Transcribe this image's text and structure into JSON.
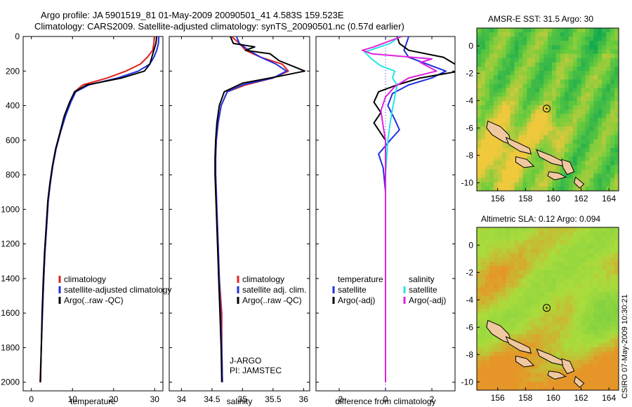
{
  "header": {
    "line1": "Argo profile: JA 5901519_81 01-May-2009 20090501_41 4.583S 159.523E",
    "line2": "Climatology: CARS2009. Satellite-adjusted climatology: synTS_20090501.nc (0.57d earlier)"
  },
  "stamp": "CSIRO 07-May-2009 10:30:21",
  "colors": {
    "climatology": "#e0201c",
    "satellite": "#2030e0",
    "argo": "#000000",
    "satellite_salinity": "#22e6e6",
    "argo_salinity_diff": "#e020e0",
    "land": "#f0c8a0"
  },
  "chart_data": [
    {
      "type": "line",
      "name": "temperature-panel",
      "xlabel": "temperature",
      "xlim": [
        -2,
        32
      ],
      "xticks": [
        0,
        10,
        20,
        30
      ],
      "ylim": [
        0,
        2050
      ],
      "yticks": [
        0,
        200,
        400,
        600,
        800,
        1000,
        1200,
        1400,
        1600,
        1800,
        2000
      ],
      "y_reversed": true,
      "legend": [
        "climatology",
        "satellite-adjusted climatology",
        "Argo(..raw -QC)"
      ],
      "legend_position": "lower-right",
      "series": [
        {
          "name": "climatology",
          "color": "#e0201c",
          "points": [
            [
              29.9,
              0
            ],
            [
              29.8,
              40
            ],
            [
              29.5,
              80
            ],
            [
              28.2,
              120
            ],
            [
              26.5,
              160
            ],
            [
              23.0,
              200
            ],
            [
              18.5,
              240
            ],
            [
              12.5,
              280
            ],
            [
              10.5,
              320
            ],
            [
              9.5,
              380
            ],
            [
              8.2,
              460
            ],
            [
              7.0,
              560
            ],
            [
              6.0,
              650
            ],
            [
              5.2,
              750
            ],
            [
              4.6,
              850
            ],
            [
              4.1,
              950
            ],
            [
              3.7,
              1100
            ],
            [
              3.3,
              1250
            ],
            [
              3.0,
              1400
            ],
            [
              2.7,
              1600
            ],
            [
              2.4,
              1800
            ],
            [
              2.1,
              2000
            ]
          ]
        },
        {
          "name": "satellite-adjusted climatology",
          "color": "#2030e0",
          "points": [
            [
              31.0,
              0
            ],
            [
              30.9,
              40
            ],
            [
              30.5,
              80
            ],
            [
              29.8,
              120
            ],
            [
              28.8,
              160
            ],
            [
              26.0,
              200
            ],
            [
              21.0,
              240
            ],
            [
              14.0,
              280
            ],
            [
              10.8,
              320
            ],
            [
              9.6,
              380
            ],
            [
              8.3,
              460
            ],
            [
              7.0,
              560
            ],
            [
              6.0,
              650
            ],
            [
              5.2,
              750
            ],
            [
              4.6,
              850
            ],
            [
              4.1,
              950
            ],
            [
              3.7,
              1100
            ],
            [
              3.3,
              1250
            ],
            [
              3.0,
              1400
            ],
            [
              2.7,
              1600
            ],
            [
              2.4,
              1800
            ],
            [
              2.2,
              2000
            ]
          ]
        },
        {
          "name": "Argo(..raw -QC)",
          "color": "#000000",
          "points": [
            [
              30.5,
              0
            ],
            [
              30.3,
              40
            ],
            [
              29.8,
              80
            ],
            [
              29.3,
              120
            ],
            [
              28.8,
              160
            ],
            [
              27.5,
              200
            ],
            [
              22.0,
              240
            ],
            [
              13.5,
              280
            ],
            [
              10.5,
              320
            ],
            [
              9.3,
              380
            ],
            [
              8.0,
              460
            ],
            [
              6.9,
              560
            ],
            [
              5.9,
              650
            ],
            [
              5.1,
              750
            ],
            [
              4.5,
              850
            ],
            [
              4.0,
              950
            ],
            [
              3.6,
              1100
            ],
            [
              3.2,
              1250
            ],
            [
              2.9,
              1400
            ],
            [
              2.6,
              1600
            ],
            [
              2.4,
              1800
            ],
            [
              2.2,
              2000
            ]
          ]
        }
      ]
    },
    {
      "type": "line",
      "name": "salinity-panel",
      "xlabel": "salinity",
      "xlim": [
        33.8,
        36.1
      ],
      "xticks": [
        34,
        34.5,
        35,
        35.5,
        36
      ],
      "ylim": [
        0,
        2050
      ],
      "y_reversed": true,
      "legend": [
        "climatology",
        "satellite adj. clim.",
        "Argo(..raw -QC)"
      ],
      "legend_position": "lower-right",
      "annotation": [
        "J-ARGO",
        "PI: JAMSTEC"
      ],
      "series": [
        {
          "name": "climatology",
          "color": "#e0201c",
          "points": [
            [
              34.82,
              0
            ],
            [
              34.95,
              40
            ],
            [
              35.05,
              80
            ],
            [
              35.3,
              120
            ],
            [
              35.65,
              160
            ],
            [
              35.75,
              200
            ],
            [
              35.5,
              240
            ],
            [
              35.05,
              280
            ],
            [
              34.75,
              320
            ],
            [
              34.65,
              400
            ],
            [
              34.6,
              500
            ],
            [
              34.57,
              600
            ],
            [
              34.56,
              700
            ],
            [
              34.56,
              800
            ],
            [
              34.57,
              900
            ],
            [
              34.58,
              1000
            ],
            [
              34.6,
              1200
            ],
            [
              34.62,
              1400
            ],
            [
              34.65,
              1550
            ],
            [
              34.66,
              1600
            ],
            [
              34.66,
              1800
            ],
            [
              34.67,
              2000
            ]
          ]
        },
        {
          "name": "satellite adj. clim.",
          "color": "#2030e0",
          "points": [
            [
              34.9,
              0
            ],
            [
              34.95,
              40
            ],
            [
              35.1,
              80
            ],
            [
              35.3,
              120
            ],
            [
              35.55,
              160
            ],
            [
              35.72,
              200
            ],
            [
              35.5,
              240
            ],
            [
              35.0,
              280
            ],
            [
              34.75,
              320
            ],
            [
              34.65,
              400
            ],
            [
              34.6,
              500
            ],
            [
              34.57,
              600
            ],
            [
              34.56,
              700
            ],
            [
              34.56,
              800
            ],
            [
              34.57,
              900
            ],
            [
              34.58,
              1000
            ],
            [
              34.6,
              1200
            ],
            [
              34.62,
              1400
            ],
            [
              34.64,
              1600
            ],
            [
              34.66,
              1800
            ],
            [
              34.67,
              2000
            ]
          ]
        },
        {
          "name": "Argo(..raw -QC)",
          "color": "#000000",
          "points": [
            [
              34.8,
              0
            ],
            [
              34.85,
              40
            ],
            [
              35.2,
              60
            ],
            [
              35.05,
              80
            ],
            [
              35.45,
              100
            ],
            [
              35.6,
              140
            ],
            [
              35.95,
              190
            ],
            [
              36.02,
              200
            ],
            [
              35.6,
              230
            ],
            [
              35.0,
              270
            ],
            [
              34.7,
              320
            ],
            [
              34.62,
              400
            ],
            [
              34.58,
              500
            ],
            [
              34.56,
              600
            ],
            [
              34.55,
              700
            ],
            [
              34.55,
              800
            ],
            [
              34.56,
              900
            ],
            [
              34.57,
              1000
            ],
            [
              34.59,
              1200
            ],
            [
              34.61,
              1400
            ],
            [
              34.63,
              1600
            ],
            [
              34.65,
              1800
            ],
            [
              34.66,
              2000
            ]
          ]
        }
      ]
    },
    {
      "type": "line",
      "name": "difference-panel",
      "xlabel": "difference from climatology",
      "xlim": [
        -3,
        3
      ],
      "xticks": [
        -2,
        0,
        2
      ],
      "ylim": [
        0,
        2050
      ],
      "y_reversed": true,
      "legend": [
        "temperature",
        "satellite",
        "Argo(-adj)",
        "salinity",
        "satellite",
        "Argo(-adj)"
      ],
      "legend_position": "lower-right",
      "series": [
        {
          "name": "temperature satellite",
          "color": "#2030e0",
          "points": [
            [
              1.0,
              0
            ],
            [
              0.9,
              40
            ],
            [
              0.8,
              80
            ],
            [
              1.0,
              120
            ],
            [
              1.8,
              160
            ],
            [
              2.6,
              200
            ],
            [
              2.0,
              240
            ],
            [
              1.0,
              280
            ],
            [
              0.3,
              330
            ],
            [
              0.1,
              400
            ],
            [
              0.4,
              480
            ],
            [
              0.6,
              540
            ],
            [
              0.2,
              600
            ],
            [
              -0.3,
              680
            ],
            [
              -0.1,
              760
            ],
            [
              0.0,
              900
            ],
            [
              0.0,
              1200
            ],
            [
              0.0,
              1600
            ],
            [
              0.0,
              2000
            ]
          ]
        },
        {
          "name": "temperature Argo(-adj)",
          "color": "#000000",
          "points": [
            [
              0.5,
              0
            ],
            [
              0.6,
              40
            ],
            [
              1.0,
              80
            ],
            [
              2.5,
              120
            ],
            [
              3.0,
              160
            ],
            [
              3.2,
              200
            ],
            [
              1.5,
              240
            ],
            [
              0.5,
              280
            ],
            [
              -0.3,
              320
            ],
            [
              -0.5,
              380
            ],
            [
              -0.2,
              440
            ],
            [
              -0.5,
              500
            ],
            [
              -0.2,
              560
            ],
            [
              0.0,
              600
            ],
            [
              0.0,
              700
            ],
            [
              0.0,
              900
            ],
            [
              0.0,
              1200
            ],
            [
              0.0,
              1600
            ],
            [
              0.0,
              2000
            ]
          ]
        },
        {
          "name": "salinity satellite",
          "color": "#22e6e6",
          "points": [
            [
              0.6,
              0
            ],
            [
              0.2,
              40
            ],
            [
              -0.9,
              90
            ],
            [
              -0.6,
              130
            ],
            [
              -0.2,
              170
            ],
            [
              0.4,
              200
            ],
            [
              0.3,
              240
            ],
            [
              0.5,
              280
            ],
            [
              0.4,
              350
            ],
            [
              0.3,
              420
            ],
            [
              0.2,
              500
            ],
            [
              0.1,
              600
            ],
            [
              0.0,
              800
            ],
            [
              0.0,
              1200
            ],
            [
              0.0,
              1600
            ],
            [
              0.0,
              2000
            ]
          ]
        },
        {
          "name": "salinity Argo(-adj)",
          "color": "#e020e0",
          "points": [
            [
              0.7,
              0
            ],
            [
              -0.5,
              60
            ],
            [
              -1.0,
              80
            ],
            [
              -0.6,
              100
            ],
            [
              2.0,
              130
            ],
            [
              1.5,
              150
            ],
            [
              2.2,
              200
            ],
            [
              1.0,
              240
            ],
            [
              0.4,
              290
            ],
            [
              0.0,
              350
            ],
            [
              -0.2,
              430
            ],
            [
              -0.1,
              520
            ],
            [
              0.0,
              600
            ],
            [
              0.0,
              800
            ],
            [
              0.0,
              1200
            ],
            [
              0.0,
              1600
            ],
            [
              0.0,
              2000
            ]
          ]
        }
      ]
    },
    {
      "type": "heatmap",
      "name": "sst-map",
      "title": "AMSR-E SST: 31.5 Argo: 30",
      "xlim": [
        154.5,
        164.7
      ],
      "ylim": [
        -10.6,
        1.3
      ],
      "xticks": [
        156,
        158,
        160,
        162,
        164
      ],
      "yticks": [
        0,
        -2,
        -4,
        -6,
        -8,
        -10
      ],
      "profile_location": [
        159.523,
        -4.583
      ]
    },
    {
      "type": "heatmap",
      "name": "sla-map",
      "title": "Altimetric SLA: 0.12 Argo: 0.094",
      "xlim": [
        154.5,
        164.7
      ],
      "ylim": [
        -10.6,
        1.3
      ],
      "xticks": [
        156,
        158,
        160,
        162,
        164
      ],
      "yticks": [
        0,
        -2,
        -4,
        -6,
        -8,
        -10
      ],
      "profile_location": [
        159.523,
        -4.583
      ]
    }
  ]
}
